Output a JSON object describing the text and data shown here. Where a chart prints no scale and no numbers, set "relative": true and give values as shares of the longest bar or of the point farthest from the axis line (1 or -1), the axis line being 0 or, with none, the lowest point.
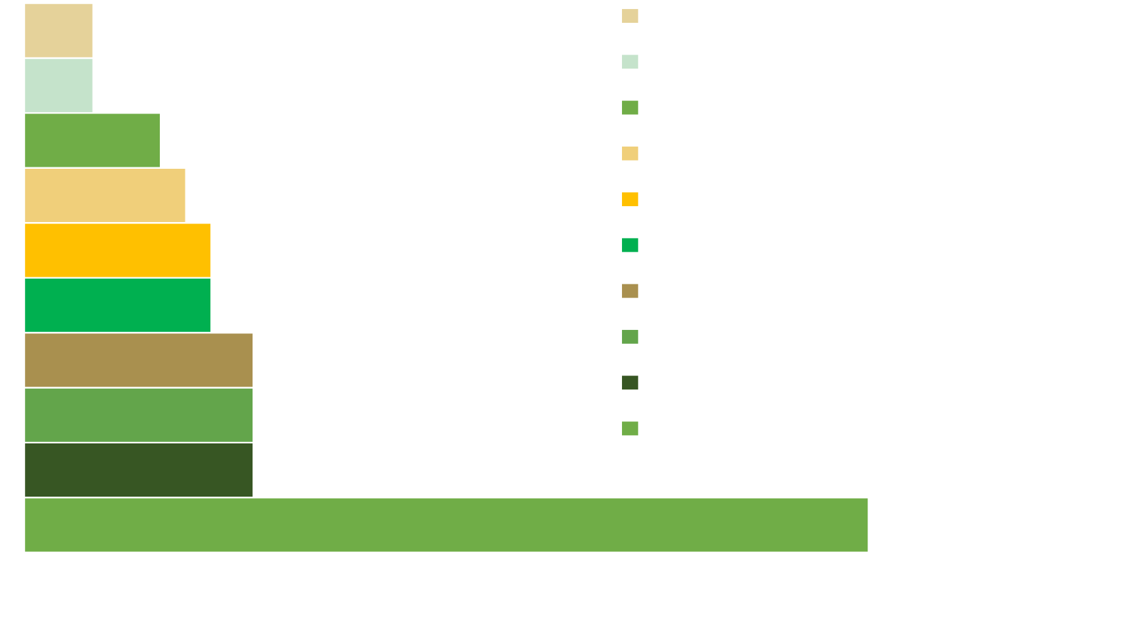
{
  "chart_data": {
    "type": "bar",
    "orientation": "horizontal",
    "relative": true,
    "categories": [
      null,
      null,
      null,
      null,
      null,
      null,
      null,
      null,
      null,
      null
    ],
    "values": [
      0.08,
      0.08,
      0.16,
      0.19,
      0.22,
      0.22,
      0.27,
      0.27,
      0.27,
      1
    ],
    "colors": [
      "#e5d29a",
      "#c5e3cb",
      "#70ad47",
      "#f0cf7a",
      "#ffc000",
      "#00b050",
      "#a9904f",
      "#63a54b",
      "#375623",
      "#70ad47"
    ],
    "tick_labels": false
  }
}
